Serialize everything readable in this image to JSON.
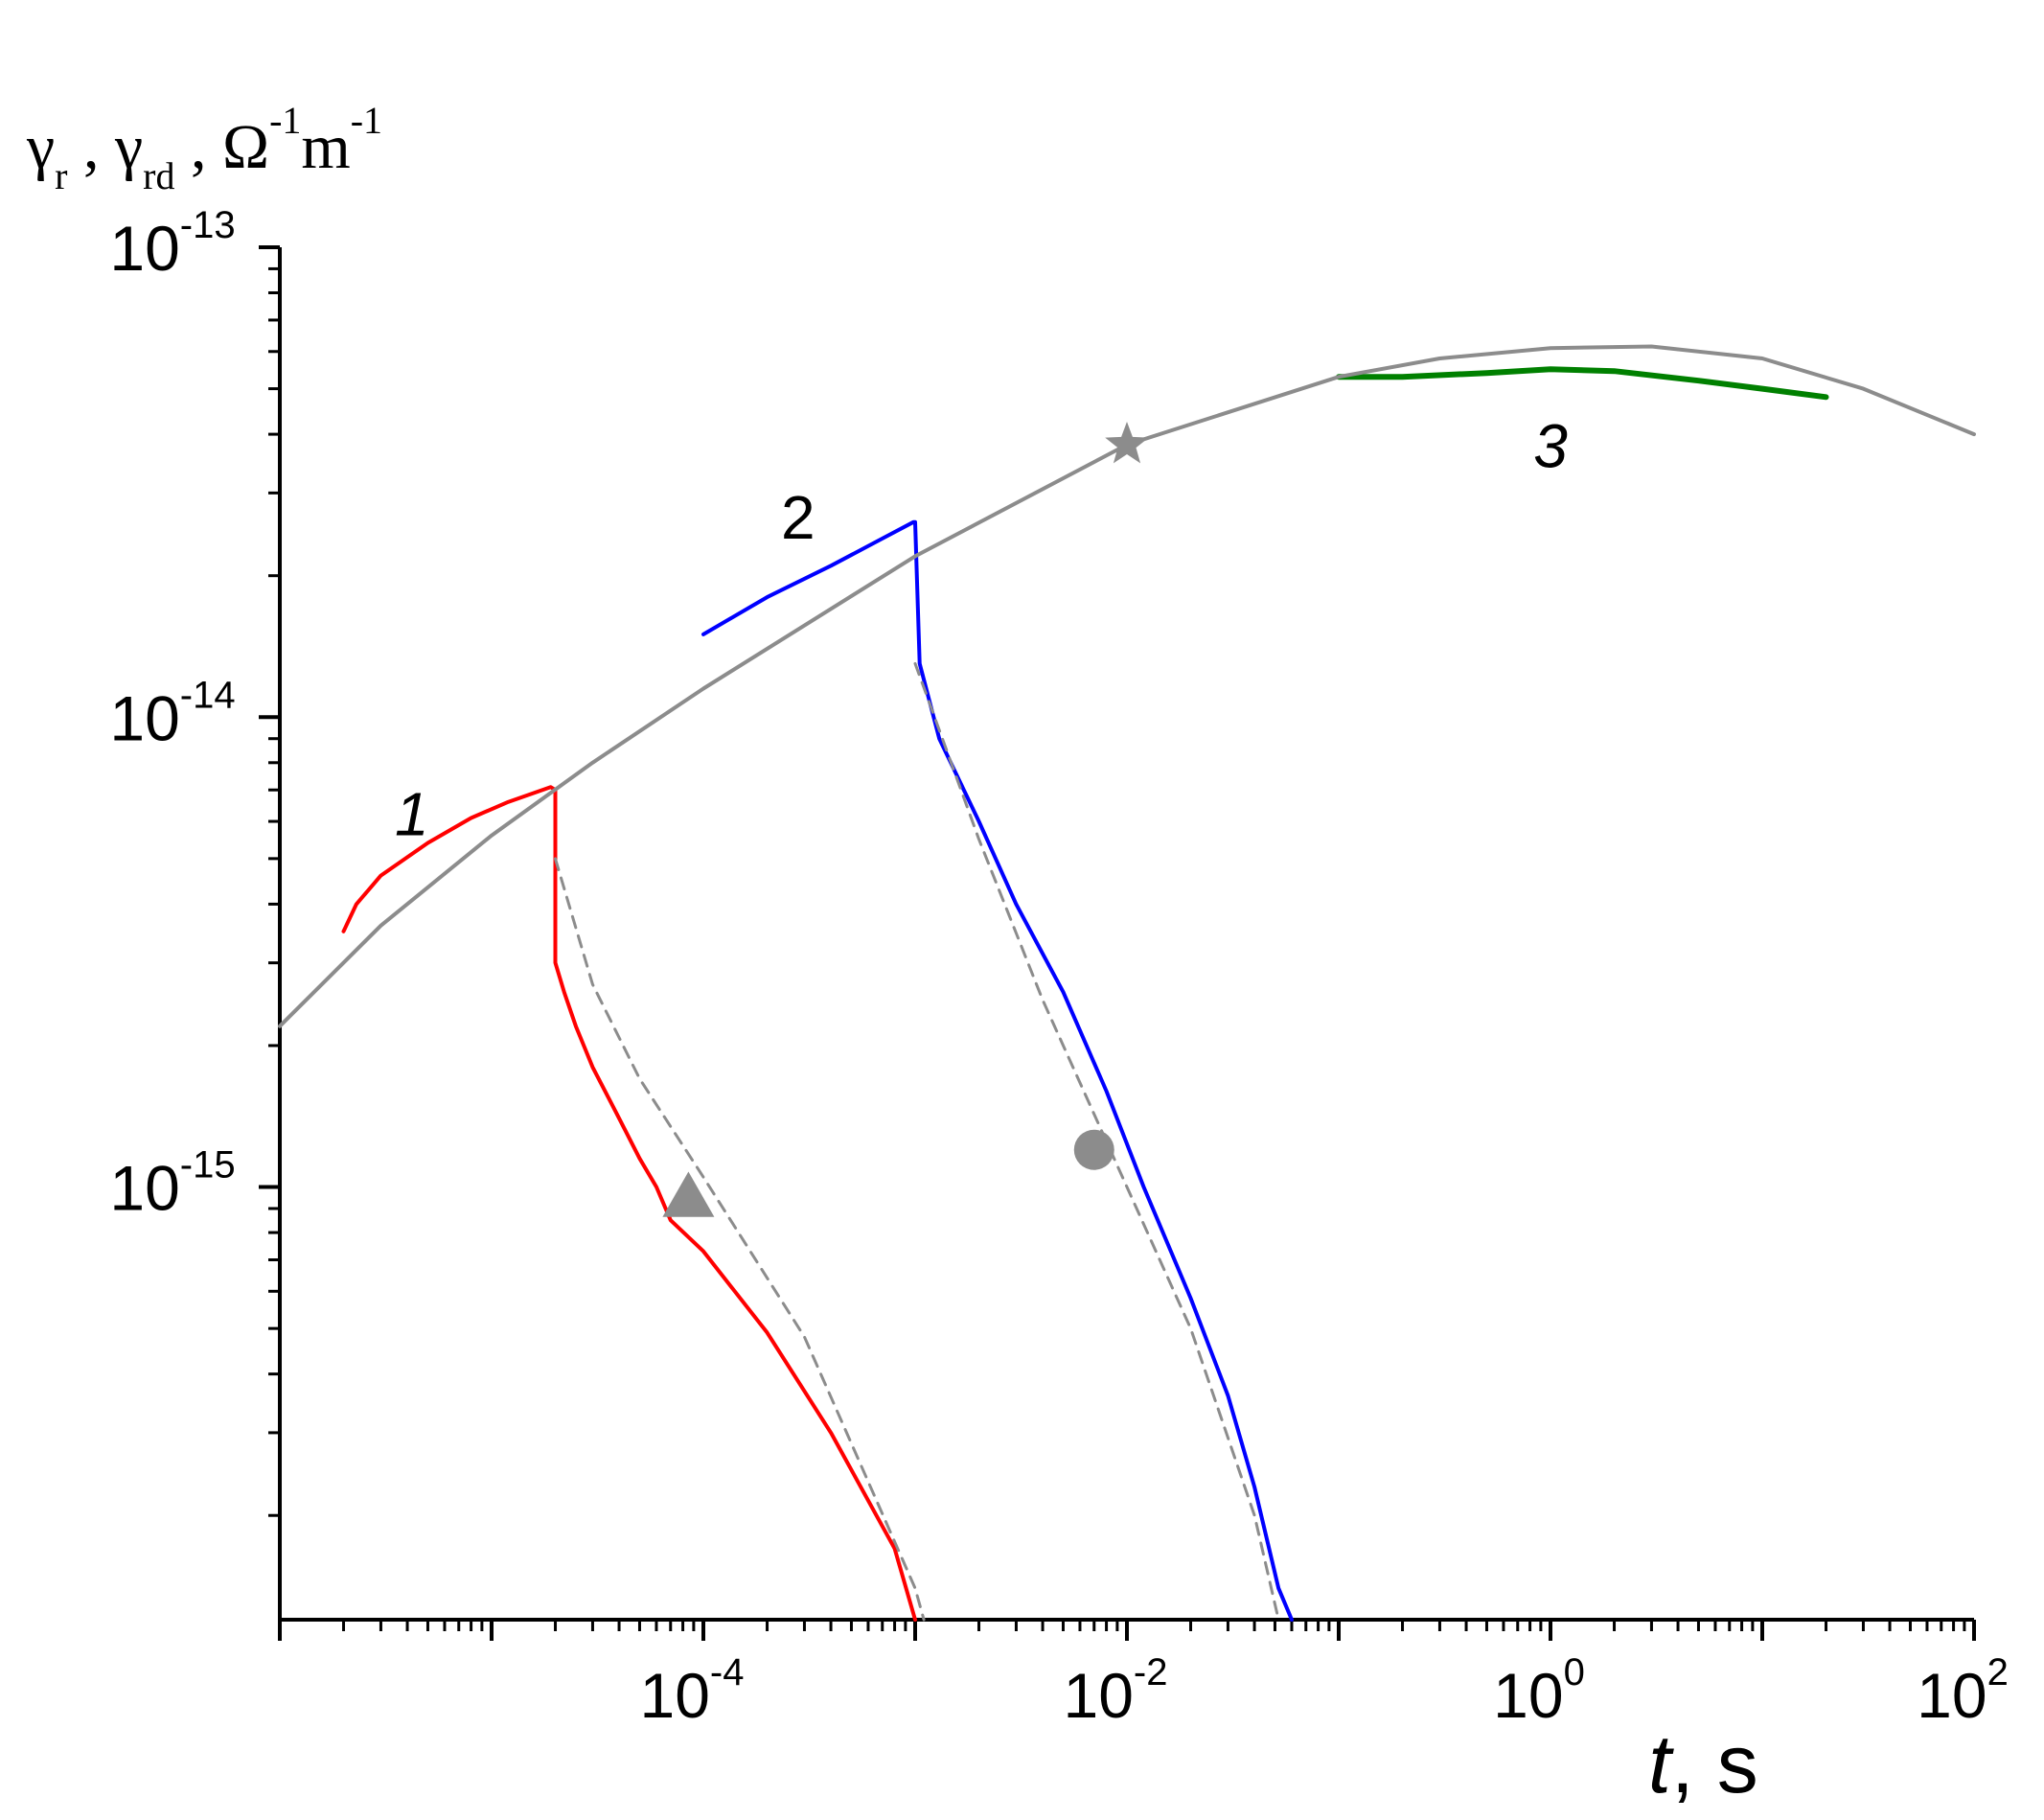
{
  "chart_data": {
    "type": "line",
    "xscale": "log",
    "yscale": "log",
    "xlim": [
      1e-06,
      100
    ],
    "ylim": [
      1.2e-16,
      1e-13
    ],
    "grid": false,
    "ylabel": "γr , γrd , Ω-1m-1",
    "ylabel_parts": {
      "g1": "γ",
      "s1": "r",
      "sep1": " , ",
      "g2": "γ",
      "s2": "rd",
      "sep2": " , ",
      "unit1": "Ω",
      "e1": "-1",
      "unit2": "m",
      "e2": "-1"
    },
    "xlabel": "t, s",
    "xlabel_parts": {
      "var": "t",
      "rest": ", s"
    },
    "xticks_major": [
      {
        "base": "10",
        "exp": "-4",
        "value": 0.0001
      },
      {
        "base": "10",
        "exp": "-2",
        "value": 0.01
      },
      {
        "base": "10",
        "exp": "0",
        "value": 1
      },
      {
        "base": "10",
        "exp": "2",
        "value": 100
      }
    ],
    "yticks_major": [
      {
        "base": "10",
        "exp": "-13",
        "value": 1e-13
      },
      {
        "base": "10",
        "exp": "-14",
        "value": 1e-14
      },
      {
        "base": "10",
        "exp": "-15",
        "value": 1e-15
      }
    ],
    "series": [
      {
        "label": "1",
        "color": "#ff0000",
        "x": [
          2e-06,
          2.3e-06,
          3e-06,
          5e-06,
          8e-06,
          1.2e-05,
          1.9e-05,
          2e-05,
          2e-05,
          2.2e-05,
          2.5e-05,
          3e-05,
          4e-05,
          5e-05,
          6e-05,
          7e-05,
          0.0001,
          0.0002,
          0.0004,
          0.0008,
          0.001
        ],
        "y": [
          3.5e-15,
          4e-15,
          4.6e-15,
          5.4e-15,
          6.1e-15,
          6.6e-15,
          7.1e-15,
          7e-15,
          3e-15,
          2.6e-15,
          2.2e-15,
          1.8e-15,
          1.4e-15,
          1.15e-15,
          1e-15,
          8.5e-16,
          7.3e-16,
          4.9e-16,
          3e-16,
          1.7e-16,
          1.2e-16
        ]
      },
      {
        "label": "2",
        "color": "#0000ff",
        "x": [
          0.0001,
          0.0002,
          0.0004,
          0.0007,
          0.00098,
          0.001,
          0.00105,
          0.0013,
          0.002,
          0.003,
          0.005,
          0.008,
          0.012,
          0.02,
          0.03,
          0.04,
          0.052,
          0.06
        ],
        "y": [
          1.5e-14,
          1.8e-14,
          2.1e-14,
          2.4e-14,
          2.6e-14,
          2.6e-14,
          1.3e-14,
          9e-15,
          6e-15,
          4e-15,
          2.6e-15,
          1.6e-15,
          1e-15,
          5.8e-16,
          3.6e-16,
          2.3e-16,
          1.4e-16,
          1.2e-16
        ]
      },
      {
        "label": "3",
        "color": "#008000",
        "x": [
          0.1,
          0.2,
          0.5,
          1,
          2,
          5,
          10,
          20
        ],
        "y": [
          5.3e-14,
          5.3e-14,
          5.4e-14,
          5.5e-14,
          5.45e-14,
          5.2e-14,
          5e-14,
          4.8e-14
        ]
      },
      {
        "label": "",
        "color": "#8c8c8c",
        "x": [
          1e-06,
          3e-06,
          1e-05,
          3e-05,
          0.0001,
          0.001,
          0.01,
          0.1,
          0.3,
          1,
          3,
          10,
          30,
          100
        ],
        "y": [
          2.2e-15,
          3.6e-15,
          5.6e-15,
          8e-15,
          1.15e-14,
          2.2e-14,
          3.8e-14,
          5.3e-14,
          5.8e-14,
          6.1e-14,
          6.15e-14,
          5.8e-14,
          5e-14,
          4e-14
        ]
      },
      {
        "label": "",
        "color": "#8c8c8c",
        "style": "dashed",
        "x": [
          2e-05,
          3e-05,
          5e-05,
          0.0001,
          0.0003,
          0.001,
          0.0011
        ],
        "y": [
          5e-15,
          2.7e-15,
          1.7e-15,
          1.05e-15,
          4.8e-16,
          1.4e-16,
          1.2e-16
        ]
      },
      {
        "label": "",
        "color": "#8c8c8c",
        "style": "dashed",
        "x": [
          0.001,
          0.002,
          0.004,
          0.01,
          0.02,
          0.04,
          0.052
        ],
        "y": [
          1.3e-14,
          5.5e-15,
          2.5e-15,
          1e-15,
          5e-16,
          2e-16,
          1.2e-16
        ]
      }
    ],
    "markers": [
      {
        "shape": "star",
        "x": 0.01,
        "y": 3.8e-14,
        "color": "#8c8c8c"
      },
      {
        "shape": "circle",
        "x": 0.007,
        "y": 1.2e-15,
        "color": "#8c8c8c"
      },
      {
        "shape": "triangle",
        "x": 8.5e-05,
        "y": 9.5e-16,
        "color": "#8c8c8c"
      }
    ]
  }
}
